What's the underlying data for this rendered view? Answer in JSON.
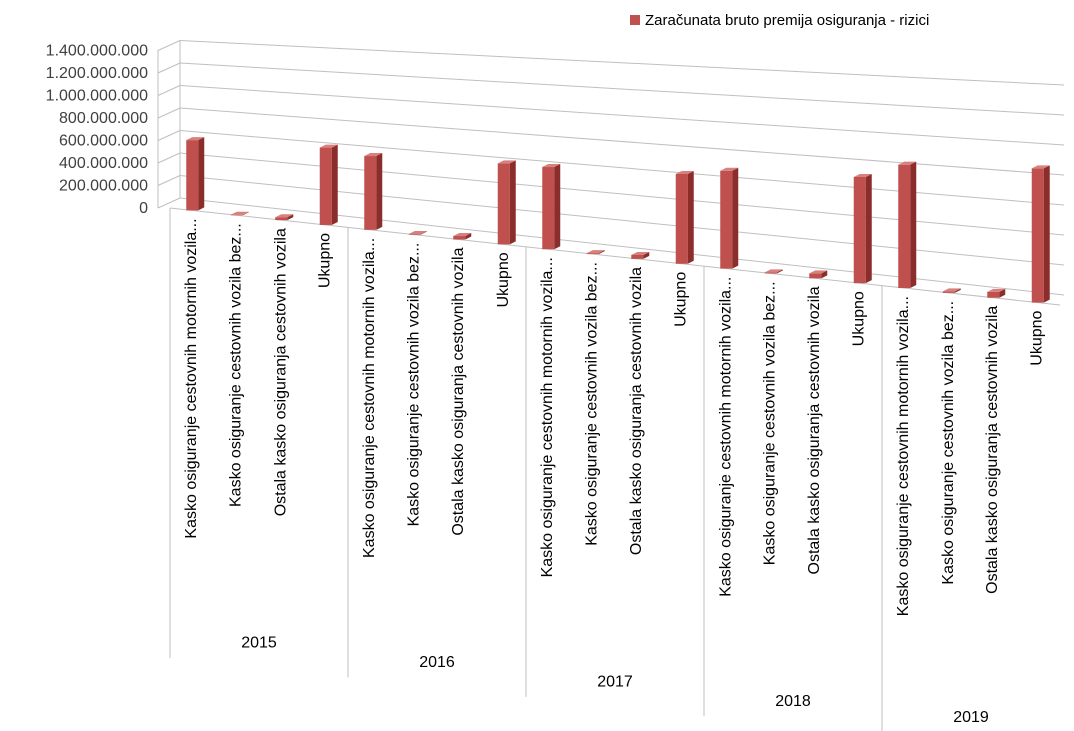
{
  "chart_data": {
    "type": "bar",
    "legend": {
      "position": "top-right",
      "label": "Zaračunata bruto premija osiguranja - rizici",
      "color": "#C0504D"
    },
    "y_ticks": [
      "0",
      "200.000.000",
      "400.000.000",
      "600.000.000",
      "800.000.000",
      "1.000.000.000",
      "1.200.000.000",
      "1.400.000.000"
    ],
    "ylim": [
      0,
      1400000000
    ],
    "grid": true,
    "groups": [
      {
        "year": "2015",
        "categories": [
          "Kasko osiguranje cestovnih motornih vozila...",
          "Kasko osiguranje cestovnih vozila bez...",
          "Ostala kasko osiguranja cestovnih vozila",
          "Ukupno"
        ],
        "values": [
          620000000,
          5000000,
          25000000,
          650000000
        ]
      },
      {
        "year": "2016",
        "categories": [
          "Kasko osiguranje cestovnih motornih vozila...",
          "Kasko osiguranje cestovnih vozila bez...",
          "Ostala kasko osiguranja cestovnih vozila",
          "Ukupno"
        ],
        "values": [
          610000000,
          6000000,
          28000000,
          640000000
        ]
      },
      {
        "year": "2017",
        "categories": [
          "Kasko osiguranje cestovnih motornih vozila...",
          "Kasko osiguranje cestovnih vozila bez...",
          "Ostala kasko osiguranja cestovnih vozila",
          "Ukupno"
        ],
        "values": [
          640000000,
          7000000,
          30000000,
          670000000
        ]
      },
      {
        "year": "2018",
        "categories": [
          "Kasko osiguranje cestovnih motornih vozila...",
          "Kasko osiguranje cestovnih vozila bez...",
          "Ostala kasko osiguranja cestovnih vozila",
          "Ukupno"
        ],
        "values": [
          720000000,
          8000000,
          35000000,
          750000000
        ]
      },
      {
        "year": "2019",
        "categories": [
          "Kasko osiguranje cestovnih motornih vozila...",
          "Kasko osiguranje cestovnih vozila bez...",
          "Ostala kasko osiguranja cestovnih vozila",
          "Ukupno"
        ],
        "values": [
          860000000,
          10000000,
          40000000,
          900000000
        ]
      }
    ]
  }
}
